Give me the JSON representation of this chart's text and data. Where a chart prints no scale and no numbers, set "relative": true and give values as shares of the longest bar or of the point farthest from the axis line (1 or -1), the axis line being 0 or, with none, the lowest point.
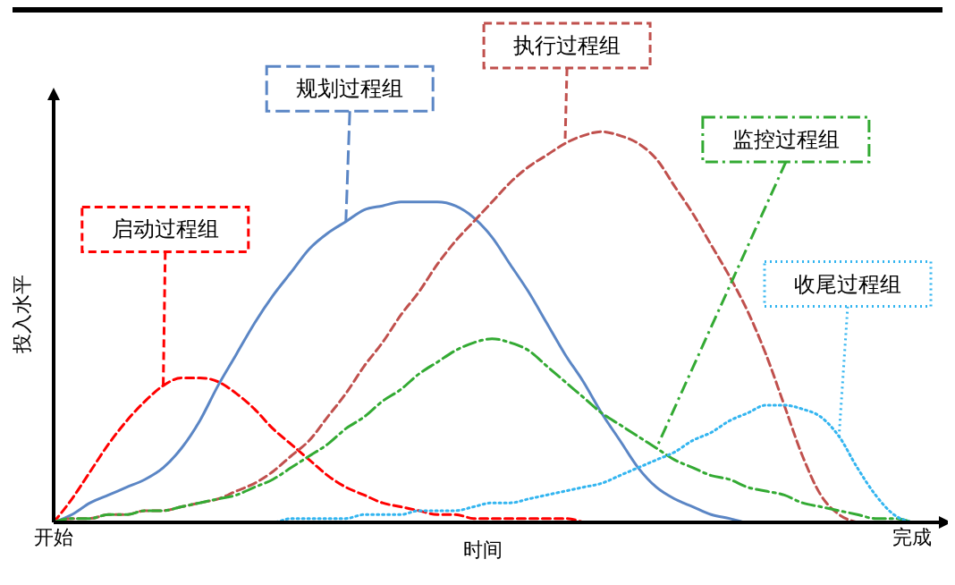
{
  "chart_data": {
    "type": "line",
    "relative": true,
    "xlabel": "时间",
    "ylabel": "投入水平",
    "marker": "none",
    "categories": [
      "开始",
      null,
      null,
      null,
      null,
      null,
      null,
      null,
      null,
      null,
      null,
      null,
      null,
      null,
      null,
      null,
      null,
      null,
      null,
      null,
      null,
      null,
      null,
      null,
      null,
      null,
      null,
      null,
      null,
      null,
      null,
      null,
      null,
      null,
      null,
      null,
      null,
      null,
      null,
      null,
      null,
      null,
      null,
      null,
      null,
      null,
      null,
      "完成"
    ],
    "series": [
      {
        "name": "启动过程组",
        "color": "#ff0000",
        "line_style": "dashed",
        "values": [
          0,
          0.06,
          0.13,
          0.2,
          0.26,
          0.31,
          0.35,
          0.37,
          0.37,
          0.36,
          0.33,
          0.29,
          0.24,
          0.2,
          0.16,
          0.12,
          0.09,
          0.07,
          0.05,
          0.04,
          0.03,
          0.02,
          0.02,
          0.01,
          0.01,
          0.01,
          0.01,
          0.01,
          0.01,
          0,
          null,
          null,
          null,
          null,
          null,
          null,
          null,
          null,
          null,
          null,
          null,
          null,
          null,
          null,
          null,
          null,
          null,
          null
        ]
      },
      {
        "name": "规划过程组",
        "color": "#5b86c5",
        "line_style": "solid",
        "values": [
          0,
          0.02,
          0.05,
          0.07,
          0.09,
          0.11,
          0.14,
          0.19,
          0.26,
          0.35,
          0.43,
          0.51,
          0.58,
          0.64,
          0.7,
          0.74,
          0.77,
          0.8,
          0.81,
          0.82,
          0.82,
          0.82,
          0.81,
          0.78,
          0.73,
          0.66,
          0.59,
          0.51,
          0.43,
          0.36,
          0.28,
          0.21,
          0.14,
          0.09,
          0.06,
          0.04,
          0.02,
          0.01,
          0,
          0,
          null,
          null,
          null,
          null,
          null,
          null,
          null,
          null
        ]
      },
      {
        "name": "执行过程组",
        "color": "#c0504d",
        "line_style": "dashed",
        "values": [
          0,
          0.01,
          0.01,
          0.02,
          0.02,
          0.03,
          0.03,
          0.04,
          0.05,
          0.06,
          0.08,
          0.1,
          0.13,
          0.17,
          0.21,
          0.27,
          0.33,
          0.4,
          0.46,
          0.53,
          0.59,
          0.66,
          0.72,
          0.77,
          0.82,
          0.87,
          0.91,
          0.94,
          0.97,
          0.99,
          1,
          0.99,
          0.97,
          0.93,
          0.86,
          0.79,
          0.71,
          0.63,
          0.54,
          0.43,
          0.3,
          0.17,
          0.07,
          0.02,
          0,
          null,
          null,
          null
        ]
      },
      {
        "name": "监控过程组",
        "color": "#33aa33",
        "line_style": "dashdot",
        "values": [
          0,
          0.01,
          0.01,
          0.02,
          0.02,
          0.03,
          0.03,
          0.04,
          0.05,
          0.06,
          0.07,
          0.09,
          0.11,
          0.14,
          0.17,
          0.2,
          0.24,
          0.27,
          0.31,
          0.34,
          0.38,
          0.41,
          0.44,
          0.46,
          0.47,
          0.46,
          0.44,
          0.4,
          0.36,
          0.32,
          0.28,
          0.25,
          0.22,
          0.19,
          0.16,
          0.14,
          0.12,
          0.11,
          0.09,
          0.08,
          0.07,
          0.05,
          0.04,
          0.03,
          0.02,
          0.01,
          0.01,
          0
        ]
      },
      {
        "name": "收尾过程组",
        "color": "#33b5f0",
        "line_style": "dotted",
        "values": [
          null,
          null,
          null,
          null,
          null,
          null,
          null,
          null,
          null,
          null,
          null,
          0,
          0,
          0.01,
          0.01,
          0.01,
          0.01,
          0.02,
          0.02,
          0.02,
          0.03,
          0.03,
          0.03,
          0.04,
          0.05,
          0.05,
          0.06,
          0.07,
          0.08,
          0.09,
          0.1,
          0.12,
          0.14,
          0.16,
          0.18,
          0.21,
          0.23,
          0.26,
          0.28,
          0.3,
          0.3,
          0.29,
          0.27,
          0.22,
          0.14,
          0.07,
          0.02,
          0
        ]
      }
    ]
  }
}
